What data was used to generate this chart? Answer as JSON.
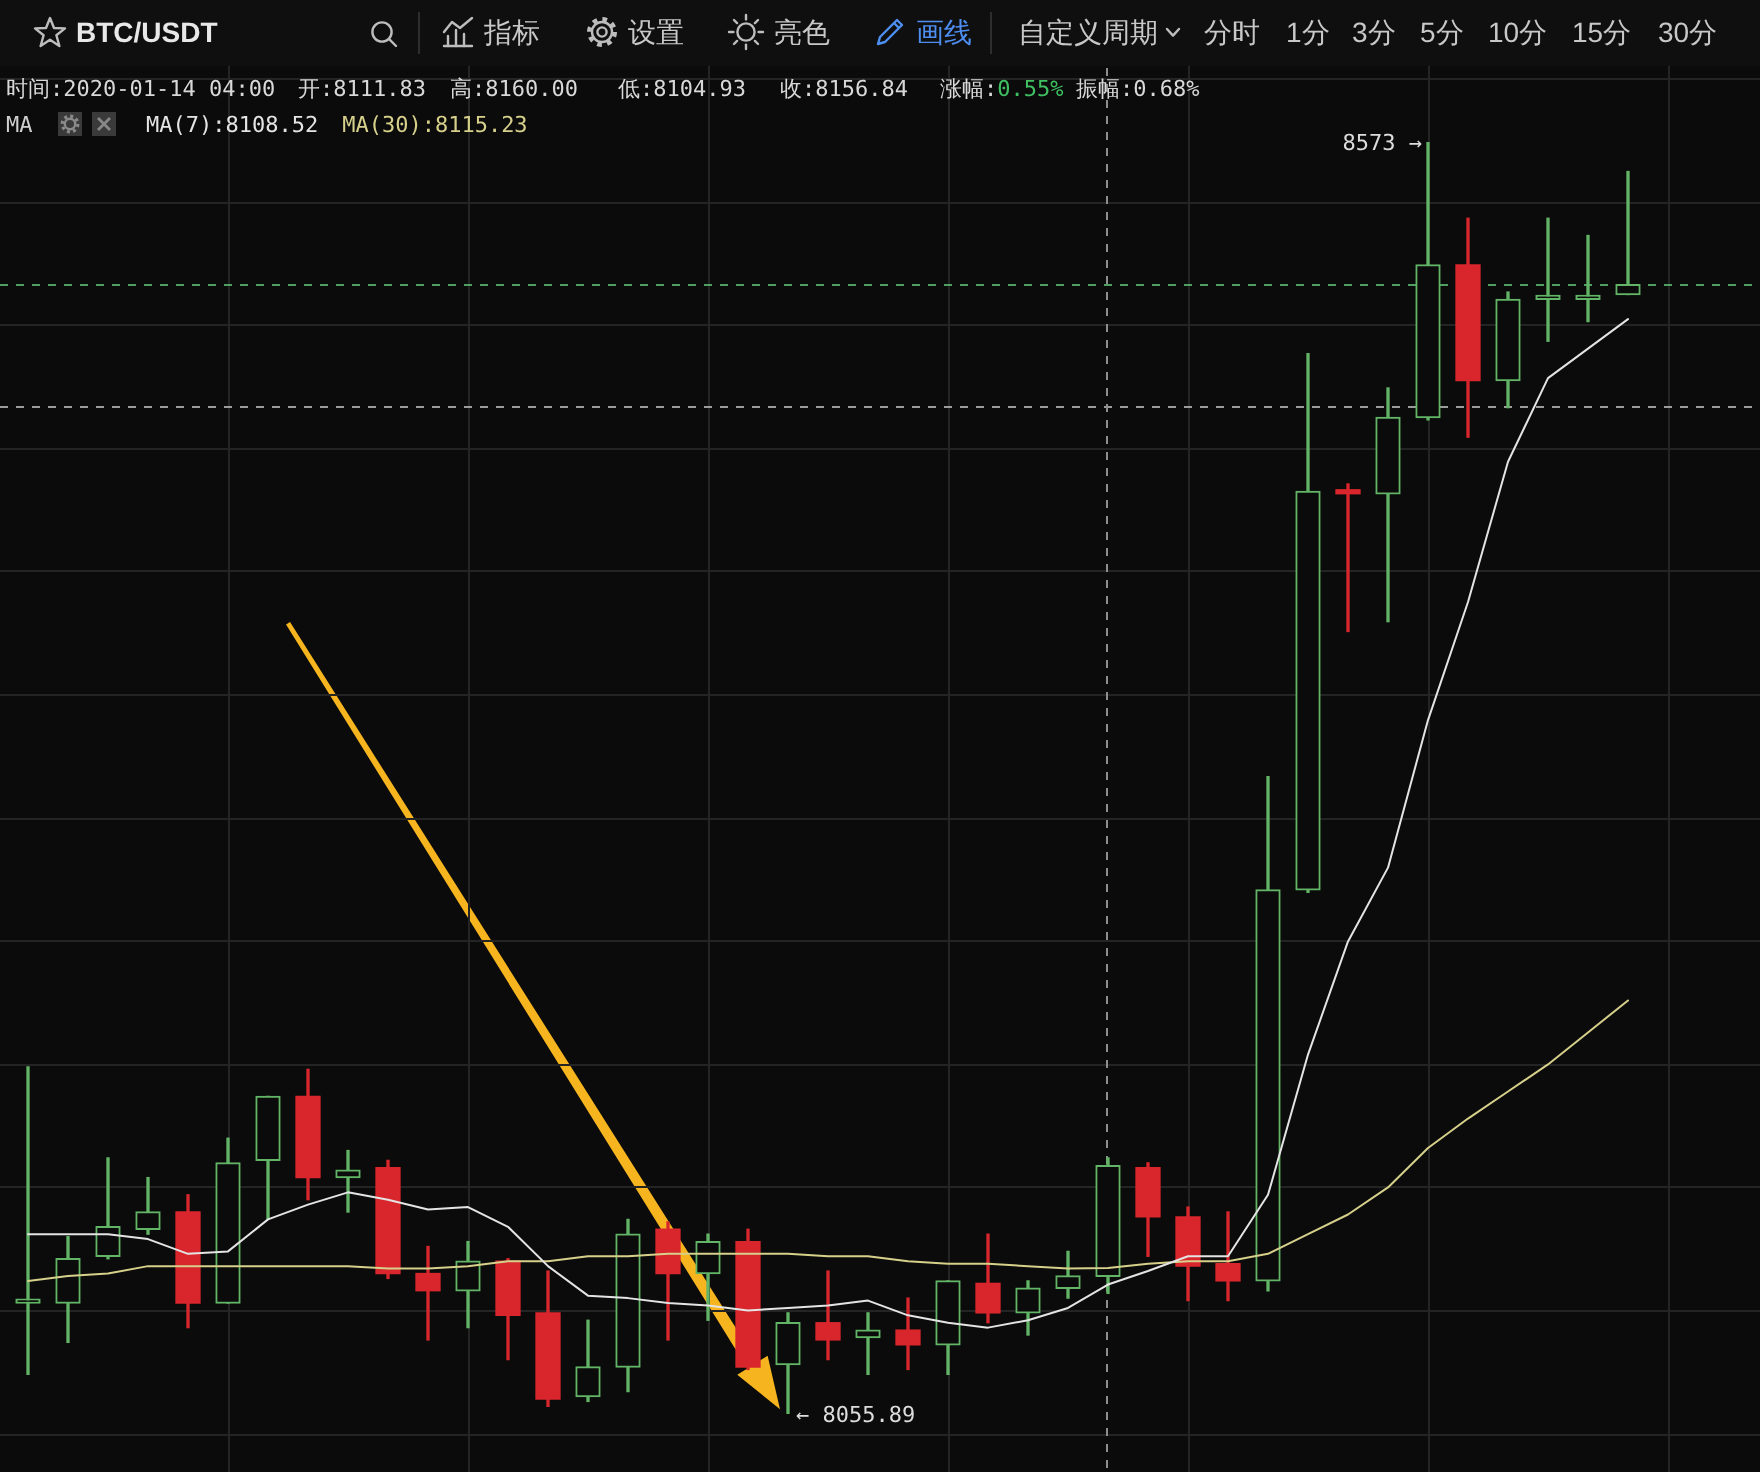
{
  "chart_data": {
    "type": "candlestick",
    "title": "BTC/USDT",
    "categories": [
      null,
      null,
      null,
      null,
      null,
      null,
      null,
      null,
      null,
      null,
      null,
      null,
      null,
      null,
      null,
      null,
      null,
      null,
      null,
      null,
      null,
      null,
      null,
      null,
      null,
      null,
      null,
      null,
      null,
      null,
      null,
      null,
      null,
      null,
      null,
      null,
      null,
      null,
      null,
      null,
      null
    ],
    "ohlc": [
      [
        8101,
        8197,
        8072,
        8102
      ],
      [
        8101,
        8128,
        8085,
        8119
      ],
      [
        8120,
        8160,
        8119,
        8132
      ],
      [
        8131,
        8152,
        8129,
        8138
      ],
      [
        8138,
        8145,
        8091,
        8101
      ],
      [
        8101,
        8168,
        8101,
        8158
      ],
      [
        8159,
        8185,
        8135,
        8185
      ],
      [
        8185,
        8196,
        8143,
        8152
      ],
      [
        8152,
        8163,
        8138,
        8155
      ],
      [
        8156,
        8159,
        8111,
        8113
      ],
      [
        8113,
        8124,
        8086,
        8106
      ],
      [
        8106,
        8126,
        8091,
        8118
      ],
      [
        8118,
        8119,
        8078,
        8096
      ],
      [
        8097,
        8114,
        8059,
        8062
      ],
      [
        8063,
        8094,
        8061,
        8075
      ],
      [
        8075,
        8135,
        8065,
        8129
      ],
      [
        8131,
        8134,
        8086,
        8113
      ],
      [
        8113,
        8129,
        8094,
        8126
      ],
      [
        8126,
        8131,
        8074,
        8075
      ],
      [
        8076,
        8097,
        8055.89,
        8093
      ],
      [
        8093,
        8114,
        8078,
        8086
      ],
      [
        8087,
        8097,
        8072,
        8090
      ],
      [
        8090,
        8103,
        8074,
        8084
      ],
      [
        8084,
        8110,
        8072,
        8110
      ],
      [
        8109,
        8129,
        8093,
        8097
      ],
      [
        8097,
        8110,
        8088,
        8107
      ],
      [
        8107,
        8122,
        8103,
        8112
      ],
      [
        8111.83,
        8160,
        8104.93,
        8156.84
      ],
      [
        8156,
        8158,
        8120,
        8136
      ],
      [
        8136,
        8140,
        8102,
        8116
      ],
      [
        8117,
        8138,
        8102,
        8110
      ],
      [
        8110,
        8315,
        8106,
        8269
      ],
      [
        8269,
        8487,
        8268,
        8431
      ],
      [
        8431,
        8434,
        8374,
        8430
      ],
      [
        8430,
        8473,
        8378,
        8461
      ],
      [
        8461,
        8573,
        8460,
        8523
      ],
      [
        8523,
        8542,
        8453,
        8476
      ],
      [
        8476,
        8512,
        8465,
        8509
      ],
      [
        8509,
        8542,
        8492,
        8509
      ],
      [
        8509,
        8535,
        8500,
        8510
      ],
      [
        8511,
        8561,
        8511,
        8515
      ]
    ],
    "colors": [
      "#62b566",
      "#62b566",
      "#62b566",
      "#62b566",
      "#d9262c",
      "#62b566",
      "#62b566",
      "#d9262c",
      "#62b566",
      "#d9262c",
      "#d9262c",
      "#62b566",
      "#d9262c",
      "#d9262c",
      "#62b566",
      "#62b566",
      "#d9262c",
      "#62b566",
      "#d9262c",
      "#62b566",
      "#d9262c",
      "#62b566",
      "#d9262c",
      "#62b566",
      "#d9262c",
      "#62b566",
      "#62b566",
      "#62b566",
      "#d9262c",
      "#d9262c",
      "#d9262c",
      "#62b566",
      "#62b566",
      "#d9262c",
      "#62b566",
      "#62b566",
      "#d9262c",
      "#62b566",
      "#62b566",
      "#62b566",
      "#62b566"
    ],
    "series": [
      {
        "name": "MA(7):8108.52",
        "type": "line",
        "color": "#e4e4e4",
        "values": [
          8129,
          8129,
          8129,
          8127,
          8121,
          8122,
          8135,
          8141,
          8146,
          8143,
          8139,
          8140,
          8132,
          8116,
          8104,
          8103,
          8101,
          8100,
          8098,
          8099,
          8100,
          8102,
          8096,
          8093,
          8091,
          8094,
          8099,
          8108.52,
          8114,
          8120,
          8120,
          8145,
          8202,
          8248,
          8278,
          8338,
          8386,
          8443,
          8477,
          8489,
          8501
        ]
      },
      {
        "name": "MA(30):8115.23",
        "type": "line",
        "color": "#d6d08a",
        "values": [
          8110,
          8112,
          8113,
          8116,
          8116,
          8116,
          8116,
          8116,
          8116,
          8115,
          8115,
          8116,
          8118,
          8118,
          8120,
          8120,
          8121,
          8121,
          8121,
          8121,
          8120,
          8120,
          8118,
          8117,
          8117,
          8116,
          8115,
          8115.23,
          8117,
          8118,
          8118,
          8121,
          8129,
          8137,
          8148,
          8164,
          8176,
          8187,
          8198,
          8211,
          8224
        ]
      }
    ],
    "ref_lines": [
      {
        "axis": "y",
        "value": 8515,
        "color": "#4f9e62",
        "line_style": "dashed"
      },
      {
        "axis": "y",
        "value": 8466,
        "color": "#9c9c9c",
        "line_style": "dashed"
      }
    ],
    "annotations": [
      "指标",
      "设置",
      "亮色",
      "画线",
      "自定义周期",
      "分时",
      "1分",
      "3分",
      "5分",
      "10分",
      "15分",
      "30分",
      "时间:2020-01-14 04:00",
      "开:8111.83",
      "高:8160.00",
      "低:8104.93",
      "收:8156.84",
      "涨幅:0.55%",
      "振幅:0.68%",
      "MA",
      "8573 →",
      "← 8055.89"
    ],
    "grid": true,
    "tick_labels": false
  }
}
